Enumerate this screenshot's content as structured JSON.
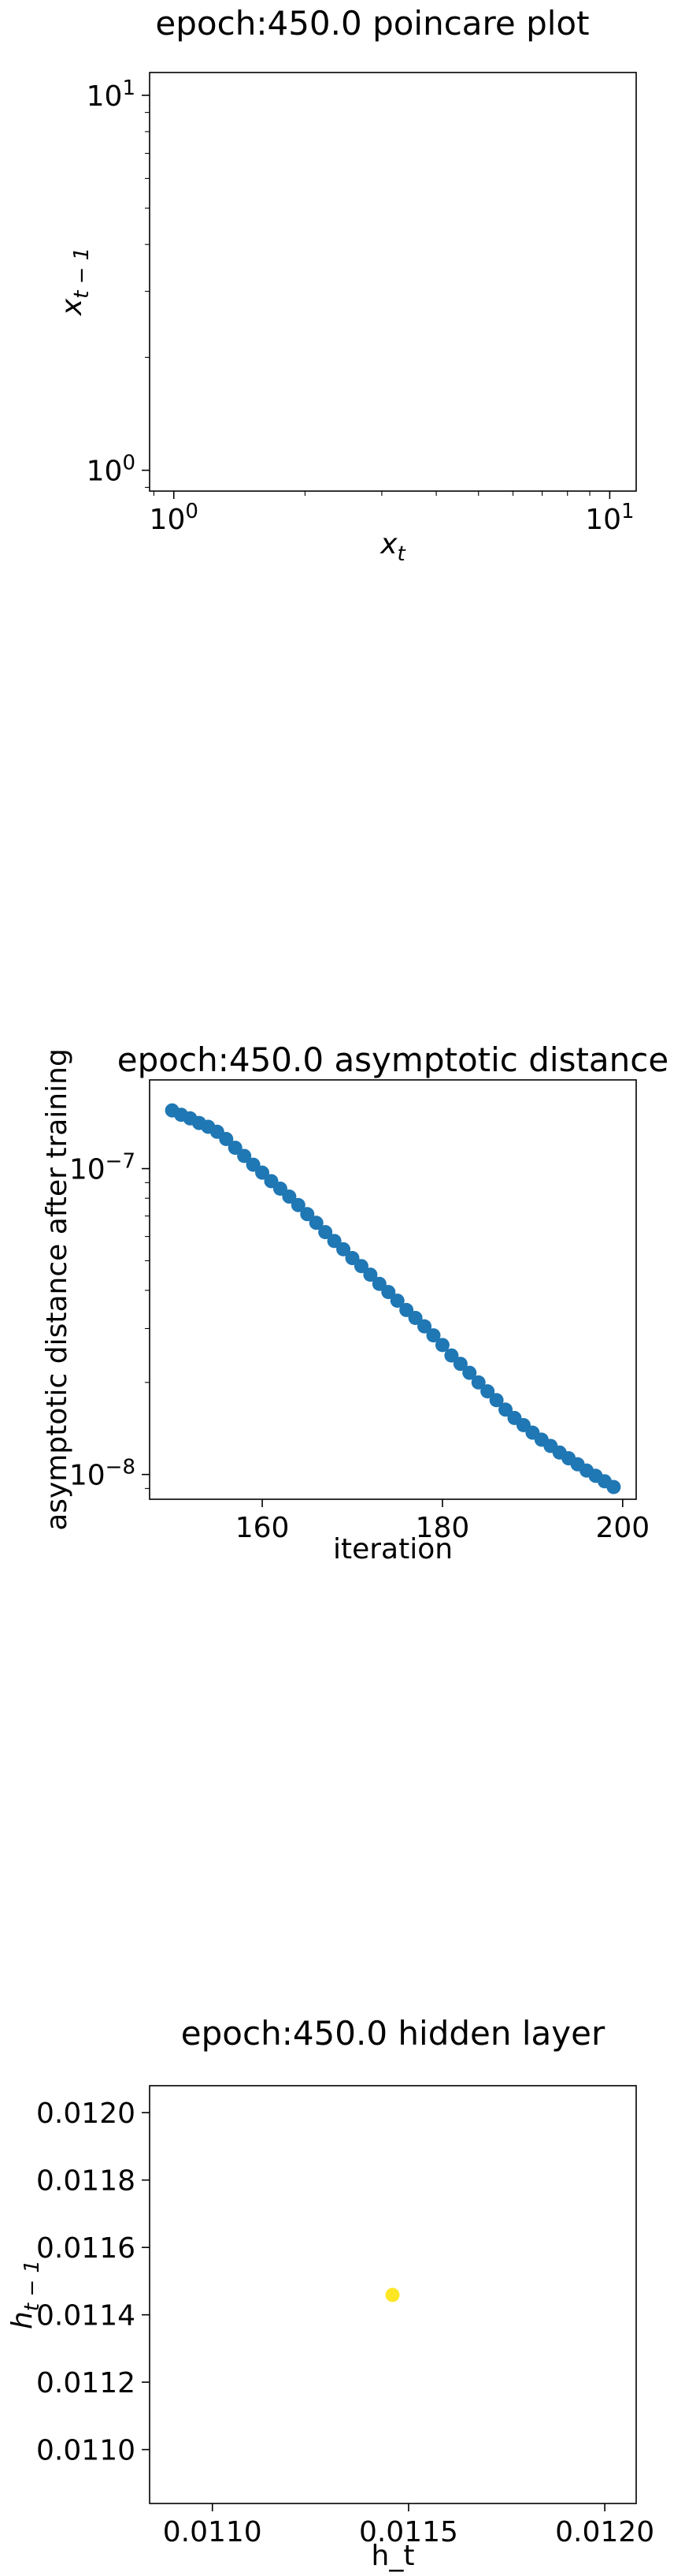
{
  "chart_data": [
    {
      "type": "scatter",
      "title": "epoch:450.0 poincare plot",
      "xlabel": "x_t",
      "ylabel": "x_{t-1}",
      "xscale": "log",
      "yscale": "log",
      "xlim": [
        0.88,
        11.5
      ],
      "ylim": [
        0.88,
        11.5
      ],
      "x_ticks": [
        {
          "base": "10",
          "exp": "0",
          "value": 1
        },
        {
          "base": "10",
          "exp": "1",
          "value": 10
        }
      ],
      "y_ticks": [
        {
          "base": "10",
          "exp": "0",
          "value": 1
        },
        {
          "base": "10",
          "exp": "1",
          "value": 10
        }
      ],
      "grid": false,
      "points": []
    },
    {
      "type": "scatter",
      "title": "epoch:450.0 asymptotic distance",
      "xlabel": "iteration",
      "ylabel": "asymptotic distance after training",
      "xscale": "linear",
      "yscale": "log",
      "xlim": [
        147.5,
        201.5
      ],
      "ylim": [
        8.3e-09,
        1.95e-07
      ],
      "x_ticks": [
        {
          "label": "160",
          "value": 160
        },
        {
          "label": "180",
          "value": 180
        },
        {
          "label": "200",
          "value": 200
        }
      ],
      "y_ticks": [
        {
          "base": "10",
          "exp": "−7",
          "value": 1e-07
        },
        {
          "base": "10",
          "exp": "−8",
          "value": 1e-08
        }
      ],
      "grid": false,
      "color": "#1f77b4",
      "x": [
        150,
        151,
        152,
        153,
        154,
        155,
        156,
        157,
        158,
        159,
        160,
        161,
        162,
        163,
        164,
        165,
        166,
        167,
        168,
        169,
        170,
        171,
        172,
        173,
        174,
        175,
        176,
        177,
        178,
        179,
        180,
        181,
        182,
        183,
        184,
        185,
        186,
        187,
        188,
        189,
        190,
        191,
        192,
        193,
        194,
        195,
        196,
        197,
        198,
        199
      ],
      "y": [
        1.55e-07,
        1.5e-07,
        1.46e-07,
        1.41e-07,
        1.37e-07,
        1.32e-07,
        1.25e-07,
        1.17e-07,
        1.1e-07,
        1.03e-07,
        9.7e-08,
        9.1e-08,
        8.6e-08,
        8.1e-08,
        7.6e-08,
        7.1e-08,
        6.65e-08,
        6.2e-08,
        5.8e-08,
        5.45e-08,
        5.1e-08,
        4.8e-08,
        4.5e-08,
        4.2e-08,
        3.95e-08,
        3.7e-08,
        3.45e-08,
        3.25e-08,
        3.05e-08,
        2.85e-08,
        2.65e-08,
        2.45e-08,
        2.3e-08,
        2.15e-08,
        2e-08,
        1.87e-08,
        1.75e-08,
        1.63e-08,
        1.53e-08,
        1.45e-08,
        1.37e-08,
        1.3e-08,
        1.24e-08,
        1.18e-08,
        1.13e-08,
        1.08e-08,
        1.03e-08,
        9.9e-09,
        9.5e-09,
        9.1e-09
      ]
    },
    {
      "type": "scatter",
      "title": "epoch:450.0 hidden layer",
      "xlabel": "h_t",
      "ylabel": "h_{t-1}",
      "xscale": "linear",
      "yscale": "linear",
      "xlim": [
        0.01084,
        0.01208
      ],
      "ylim": [
        0.01084,
        0.01208
      ],
      "x_ticks": [
        {
          "label": "0.0110",
          "value": 0.011
        },
        {
          "label": "0.0115",
          "value": 0.0115
        },
        {
          "label": "0.0120",
          "value": 0.012
        }
      ],
      "y_ticks": [
        {
          "label": "0.0110",
          "value": 0.011
        },
        {
          "label": "0.0112",
          "value": 0.0112
        },
        {
          "label": "0.0114",
          "value": 0.0114
        },
        {
          "label": "0.0116",
          "value": 0.0116
        },
        {
          "label": "0.0118",
          "value": 0.0118
        },
        {
          "label": "0.0120",
          "value": 0.012
        }
      ],
      "grid": false,
      "color": "#fde725",
      "x": [
        0.011459
      ],
      "y": [
        0.011459
      ]
    }
  ]
}
